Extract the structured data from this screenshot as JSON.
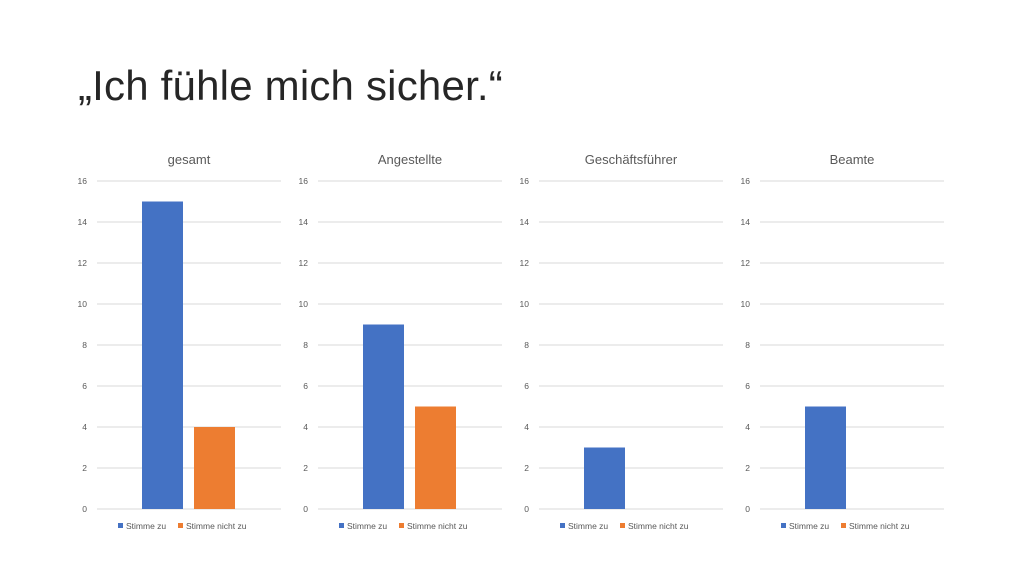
{
  "slide": {
    "title": "„Ich fühle mich sicher.“"
  },
  "colors": {
    "agree": "#4472C4",
    "disagree": "#ED7D31",
    "grid": "#d9d9d9",
    "tick_text": "#595959",
    "title_text": "#595959"
  },
  "chart_data": [
    {
      "type": "bar",
      "title": "gesamt",
      "categories": [
        "Stimme zu",
        "Stimme nicht zu"
      ],
      "values": [
        15,
        4
      ],
      "ylim": [
        0,
        16
      ],
      "yticks": [
        "0",
        "2",
        "4",
        "6",
        "8",
        "10",
        "12",
        "14",
        "16"
      ],
      "grid": true,
      "legend": "bottom",
      "legend_entries": [
        "Stimme zu",
        "Stimme nicht zu"
      ]
    },
    {
      "type": "bar",
      "title": "Angestellte",
      "categories": [
        "Stimme zu",
        "Stimme nicht zu"
      ],
      "values": [
        9,
        5
      ],
      "ylim": [
        0,
        16
      ],
      "yticks": [
        "0",
        "2",
        "4",
        "6",
        "8",
        "10",
        "12",
        "14",
        "16"
      ],
      "grid": true,
      "legend": "bottom",
      "legend_entries": [
        "Stimme zu",
        "Stimme nicht zu"
      ]
    },
    {
      "type": "bar",
      "title": "Geschäftsführer",
      "categories": [
        "Stimme zu",
        "Stimme nicht zu"
      ],
      "values": [
        3,
        0
      ],
      "ylim": [
        0,
        16
      ],
      "yticks": [
        "0",
        "2",
        "4",
        "6",
        "8",
        "10",
        "12",
        "14",
        "16"
      ],
      "grid": true,
      "legend": "bottom",
      "legend_entries": [
        "Stimme zu",
        "Stimme nicht zu"
      ]
    },
    {
      "type": "bar",
      "title": "Beamte",
      "categories": [
        "Stimme zu",
        "Stimme nicht zu"
      ],
      "values": [
        5,
        0
      ],
      "ylim": [
        0,
        16
      ],
      "yticks": [
        "0",
        "2",
        "4",
        "6",
        "8",
        "10",
        "12",
        "14",
        "16"
      ],
      "grid": true,
      "legend": "bottom",
      "legend_entries": [
        "Stimme zu",
        "Stimme nicht zu"
      ]
    }
  ]
}
